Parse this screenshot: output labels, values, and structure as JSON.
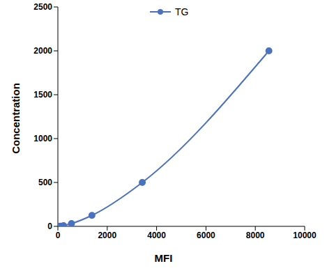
{
  "chart_data": {
    "type": "line",
    "x_label": "MFI",
    "y_label": "Concentration",
    "legend": "top",
    "grid": false,
    "series": [
      {
        "name": "TG",
        "color": "#4a72c0",
        "marker": "circle",
        "line_style": "solid",
        "x": [
          30,
          100,
          230,
          550,
          1380,
          3420,
          8550
        ],
        "values": [
          0,
          2,
          7.8,
          31.3,
          125,
          500,
          2000
        ]
      }
    ],
    "xlim": [
      0,
      10000
    ],
    "xticks": [
      0,
      2000,
      4000,
      6000,
      8000,
      10000
    ],
    "ylim": [
      0,
      2500
    ],
    "yticks": [
      0,
      500,
      1000,
      1500,
      2000,
      2500
    ]
  }
}
